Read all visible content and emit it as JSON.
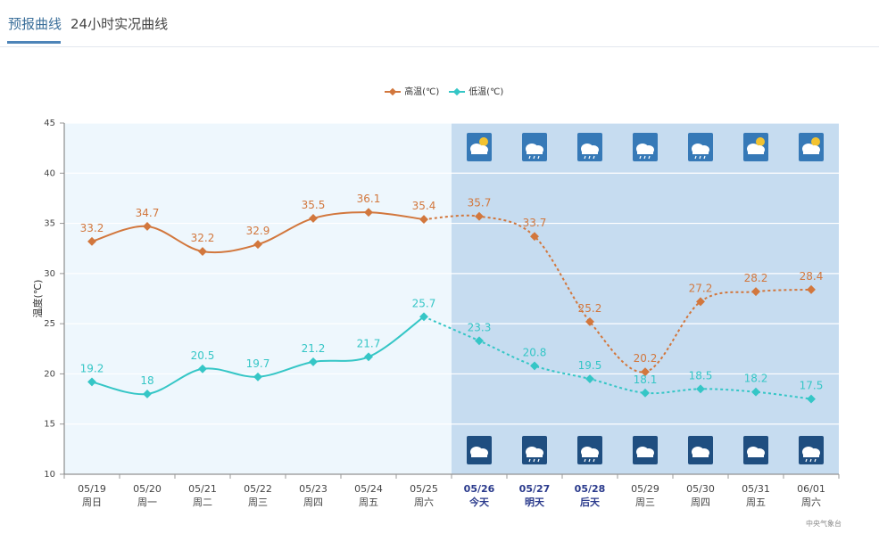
{
  "tabs": [
    {
      "label": "预报曲线",
      "active": true
    },
    {
      "label": "24小时实况曲线",
      "active": false
    }
  ],
  "credit": "中央气象台",
  "colors": {
    "high": "#d2773d",
    "low": "#35c6c6",
    "past_bg": "#eef7fd",
    "forecast_bg": "#c6dcf0",
    "highlight_date": "#2a3a8c",
    "icon_bg": "#3679b7",
    "icon_bg_bottom": "#1f4e80"
  },
  "chart_data": {
    "type": "line",
    "title": "",
    "ylabel": "温度(℃)",
    "ylim": [
      10,
      45
    ],
    "yticks": [
      10,
      15,
      20,
      25,
      30,
      35,
      40,
      45
    ],
    "grid": true,
    "legend_position": "top-center",
    "categories": [
      {
        "date": "05/19",
        "day": "周日"
      },
      {
        "date": "05/20",
        "day": "周一"
      },
      {
        "date": "05/21",
        "day": "周二"
      },
      {
        "date": "05/22",
        "day": "周三"
      },
      {
        "date": "05/23",
        "day": "周四"
      },
      {
        "date": "05/24",
        "day": "周五"
      },
      {
        "date": "05/25",
        "day": "周六"
      },
      {
        "date": "05/26",
        "day": "今天"
      },
      {
        "date": "05/27",
        "day": "明天"
      },
      {
        "date": "05/28",
        "day": "后天"
      },
      {
        "date": "05/29",
        "day": "周三"
      },
      {
        "date": "05/30",
        "day": "周四"
      },
      {
        "date": "05/31",
        "day": "周五"
      },
      {
        "date": "06/01",
        "day": "周六"
      }
    ],
    "highlighted_categories": [
      7,
      8,
      9
    ],
    "forecast_start_index": 7,
    "series": [
      {
        "name": "高温(℃)",
        "values": [
          33.2,
          34.7,
          32.2,
          32.9,
          35.5,
          36.1,
          35.4,
          35.7,
          33.7,
          25.2,
          20.2,
          27.2,
          28.2,
          28.4
        ]
      },
      {
        "name": "低温(℃)",
        "values": [
          19.2,
          18,
          20.5,
          19.7,
          21.2,
          21.7,
          25.7,
          23.3,
          20.8,
          19.5,
          18.1,
          18.5,
          18.2,
          17.5
        ]
      }
    ],
    "weather_icons_day": [
      "partly-cloudy-icon",
      "rain-icon",
      "rain-icon",
      "rain-icon",
      "rain-icon",
      "partly-cloudy-icon",
      "partly-cloudy-icon"
    ],
    "weather_icons_night": [
      "cloudy-icon",
      "rain-icon",
      "rain-icon",
      "cloudy-icon",
      "cloudy-icon",
      "cloudy-icon",
      "rain-icon"
    ]
  }
}
